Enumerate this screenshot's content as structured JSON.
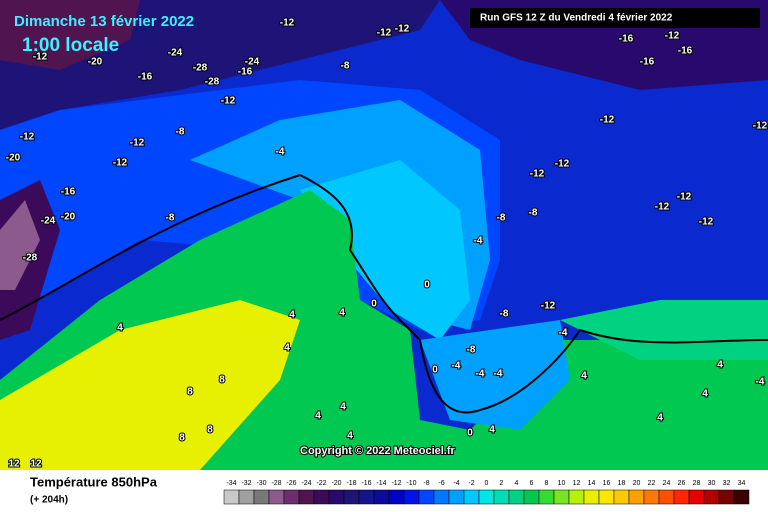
{
  "header": {
    "date": "Dimanche 13 février 2022",
    "time": "1:00 locale",
    "run": "Run GFS 12 Z du Vendredi 4 février 2022"
  },
  "copyright": "Copyright © 2022 Meteociel.fr",
  "legend": {
    "title": "Température 850hPa",
    "subtitle": "(+ 204h)",
    "values": [
      -34,
      -32,
      -30,
      -28,
      -26,
      -24,
      -22,
      -20,
      -18,
      -16,
      -14,
      -12,
      -10,
      -8,
      -6,
      -4,
      -2,
      0,
      2,
      4,
      6,
      8,
      10,
      12,
      14,
      16,
      18,
      20,
      22,
      24,
      26,
      28,
      30,
      32,
      34
    ],
    "colors": [
      "#c8c8c8",
      "#a0a0a0",
      "#787878",
      "#8c5a8c",
      "#6e2d6e",
      "#501450",
      "#3c0a5a",
      "#280a6e",
      "#1e1478",
      "#14148c",
      "#0a0aa0",
      "#0000c8",
      "#0014e6",
      "#0046ff",
      "#0078ff",
      "#00a0ff",
      "#00c8ff",
      "#00e6e6",
      "#00dcb4",
      "#00d282",
      "#00c850",
      "#32dc32",
      "#78e61e",
      "#b4f00a",
      "#e6f000",
      "#ffe600",
      "#ffc800",
      "#ffa000",
      "#ff7800",
      "#ff5000",
      "#ff2800",
      "#e60000",
      "#b40000",
      "#780000",
      "#3c0000"
    ]
  },
  "map": {
    "labels": [
      "-12",
      "-20",
      "-16",
      "-24",
      "-28",
      "-28",
      "-16",
      "-24",
      "-12",
      "-12",
      "-12",
      "-12",
      "-8",
      "-8",
      "-12",
      "-12",
      "-12",
      "-16",
      "-8",
      "-20",
      "-20",
      "-24",
      "-28",
      "-4",
      "-16",
      "-12",
      "-16",
      "-16",
      "-12",
      "-12",
      "-12",
      "-12",
      "-8",
      "-8",
      "-12",
      "-12",
      "-12",
      "-4",
      "0",
      "0",
      "-12",
      "-8",
      "-4",
      "-8",
      "-4",
      "-4",
      "-4",
      "0",
      "4",
      "4",
      "4",
      "4",
      "4",
      "8",
      "4",
      "4",
      "4",
      "0",
      "4",
      "4",
      "4",
      "-4",
      "4",
      "8",
      "8",
      "8",
      "12",
      "12"
    ]
  }
}
